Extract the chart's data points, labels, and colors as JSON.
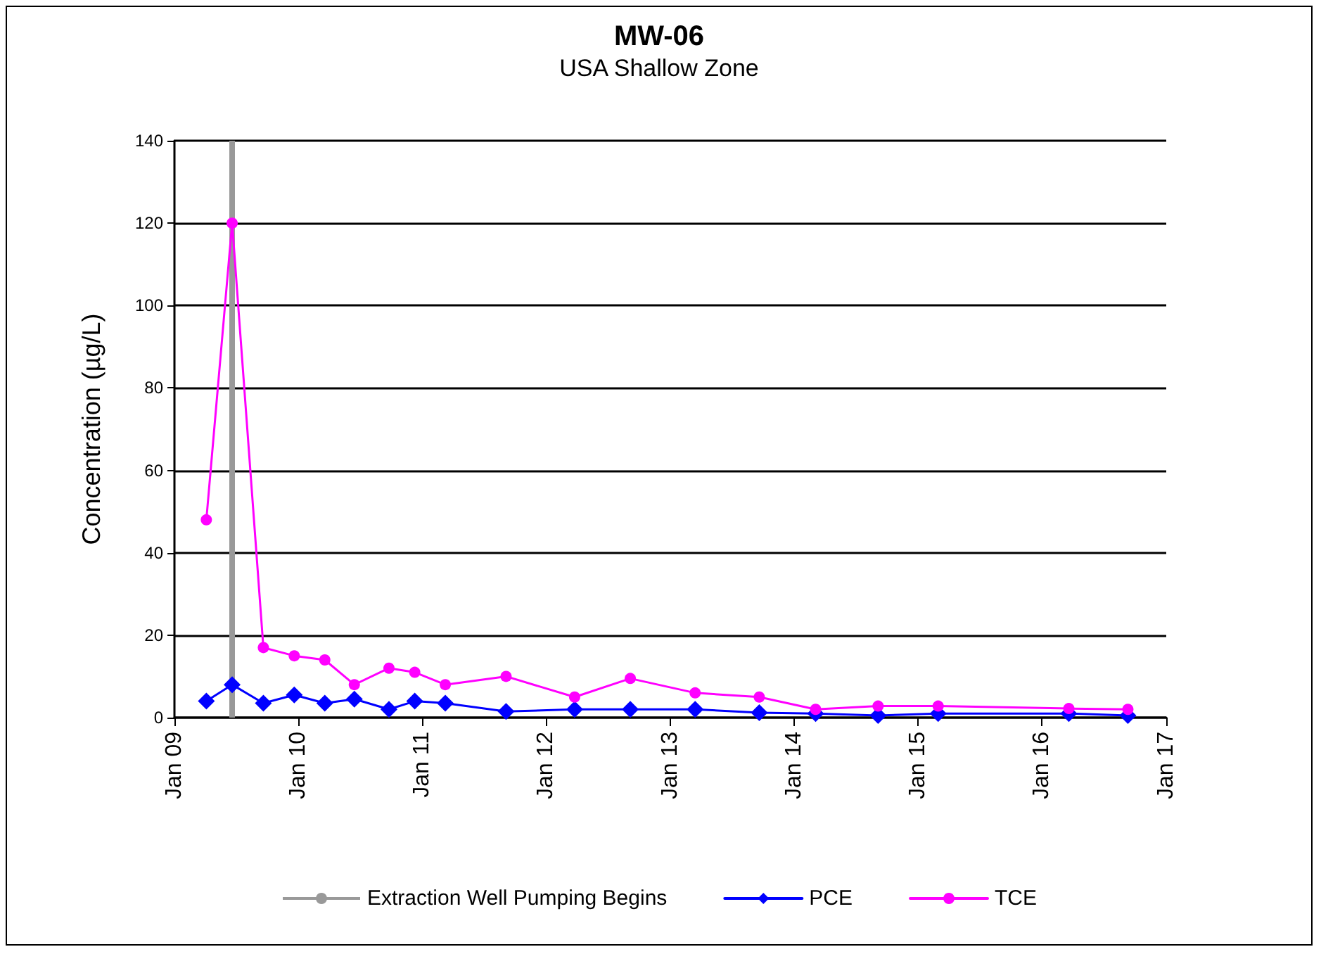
{
  "chart_data": {
    "type": "line",
    "title": "MW-06",
    "subtitle": "USA Shallow Zone",
    "ylabel": "Concentration (µg/L)",
    "xlim": [
      "2009-01-01",
      "2017-01-01"
    ],
    "xticks": [
      {
        "value": "2009-01-01",
        "label": "Jan 09"
      },
      {
        "value": "2010-01-01",
        "label": "Jan 10"
      },
      {
        "value": "2011-01-01",
        "label": "Jan 11"
      },
      {
        "value": "2012-01-01",
        "label": "Jan 12"
      },
      {
        "value": "2013-01-01",
        "label": "Jan 13"
      },
      {
        "value": "2014-01-01",
        "label": "Jan 14"
      },
      {
        "value": "2015-01-01",
        "label": "Jan 15"
      },
      {
        "value": "2016-01-01",
        "label": "Jan 16"
      },
      {
        "value": "2017-01-01",
        "label": "Jan 17"
      }
    ],
    "ylim": [
      0,
      140
    ],
    "yticks": [
      0,
      20,
      40,
      60,
      80,
      100,
      120,
      140
    ],
    "x": [
      "2009-04-05",
      "2009-06-20",
      "2009-09-20",
      "2009-12-20",
      "2010-03-20",
      "2010-06-15",
      "2010-09-25",
      "2010-12-10",
      "2011-03-10",
      "2011-09-05",
      "2012-03-25",
      "2012-09-05",
      "2013-03-15",
      "2013-09-20",
      "2014-03-05",
      "2014-09-05",
      "2015-03-01",
      "2016-03-20",
      "2016-09-10"
    ],
    "series": [
      {
        "name": "PCE",
        "color": "#0000ff",
        "marker": "diamond",
        "values": [
          4,
          8,
          3.5,
          5.5,
          3.5,
          4.5,
          2,
          4,
          3.5,
          1.5,
          2,
          2,
          2,
          1.2,
          1,
          0.5,
          1,
          1,
          0.5
        ]
      },
      {
        "name": "TCE",
        "color": "#ff00ff",
        "marker": "circle",
        "values": [
          48,
          120,
          17,
          15,
          14,
          8,
          12,
          11,
          8,
          10,
          5,
          9.5,
          6,
          5,
          2,
          2.8,
          2.8,
          2.2,
          2
        ]
      }
    ],
    "ref_lines": [
      {
        "axis": "x",
        "value": "2009-06-20",
        "label": "Extraction Well Pumping Begins",
        "color": "#999999"
      }
    ],
    "grid": "y",
    "legend": "bottom",
    "line_style": "solid"
  }
}
